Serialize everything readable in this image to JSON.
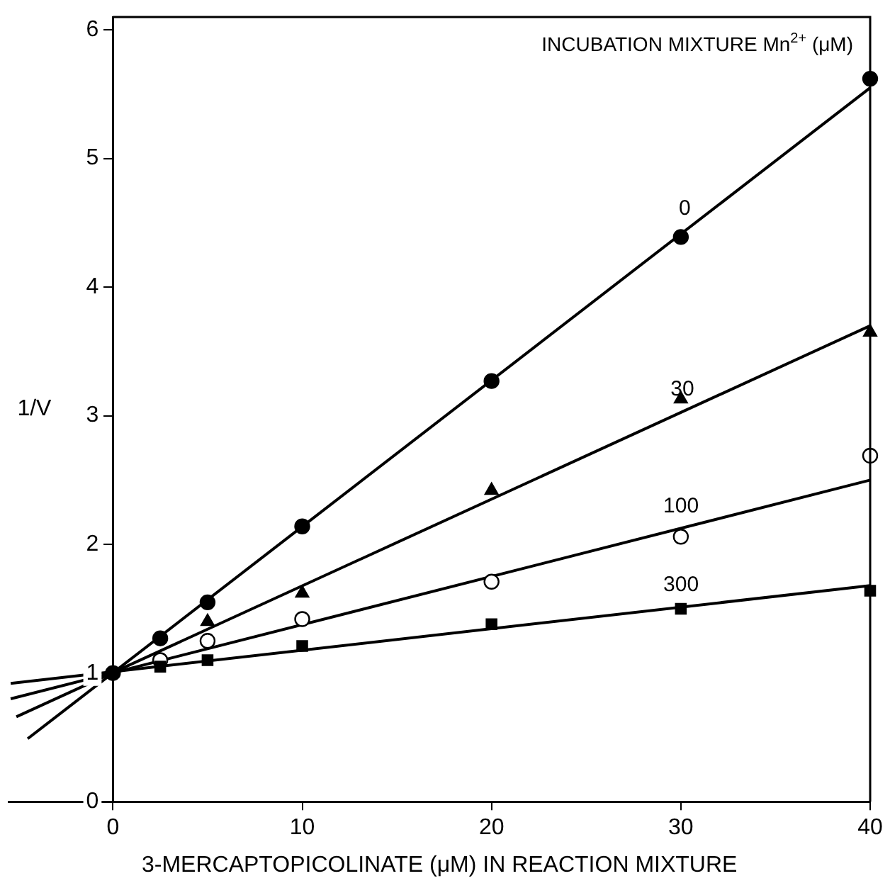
{
  "chart_data": {
    "type": "scatter",
    "legend_title": "INCUBATION MIXTURE Mn$^{2+}$ (μM)",
    "xlabel": "3-MERCAPTOPICOLINATE (μM) IN REACTION MIXTURE",
    "ylabel": "1/V",
    "xlim": [
      -5.5,
      40
    ],
    "ylim": [
      0,
      6.1
    ],
    "xticks": [
      0,
      10,
      20,
      30,
      40
    ],
    "yticks": [
      0,
      1,
      2,
      3,
      4,
      5,
      6
    ],
    "grid": false,
    "legend": false,
    "series": [
      {
        "marker": "circle",
        "color": "#000000",
        "x": [
          0,
          2.5,
          5,
          10,
          20,
          30,
          40
        ],
        "values": [
          1.0,
          1.27,
          1.55,
          2.14,
          3.27,
          4.39,
          5.62
        ]
      },
      {
        "marker": "triangle",
        "color": "#000000",
        "x": [
          5,
          10,
          20,
          30,
          40
        ],
        "values": [
          1.4,
          1.62,
          2.42,
          3.13,
          3.65
        ]
      },
      {
        "marker": "circle",
        "color": "#ffffff",
        "x": [
          2.5,
          5,
          10,
          20,
          30,
          40
        ],
        "values": [
          1.1,
          1.25,
          1.42,
          1.71,
          2.06,
          2.69
        ]
      },
      {
        "marker": "square",
        "color": "#000000",
        "x": [
          2.5,
          5,
          10,
          20,
          30,
          40
        ],
        "values": [
          1.05,
          1.1,
          1.21,
          1.38,
          1.5,
          1.64
        ]
      },
      {
        "type": "line",
        "name": "0",
        "color": "#000000",
        "x": [
          -4.5,
          40
        ],
        "values": [
          0.49,
          5.55
        ]
      },
      {
        "type": "line",
        "name": "30",
        "color": "#000000",
        "x": [
          -5.1,
          40
        ],
        "values": [
          0.66,
          3.7
        ]
      },
      {
        "type": "line",
        "name": "100",
        "color": "#000000",
        "x": [
          -5.4,
          40
        ],
        "values": [
          0.8,
          2.5
        ]
      },
      {
        "type": "line",
        "name": "300",
        "color": "#000000",
        "x": [
          -5.4,
          40
        ],
        "values": [
          0.92,
          1.68
        ]
      }
    ]
  }
}
